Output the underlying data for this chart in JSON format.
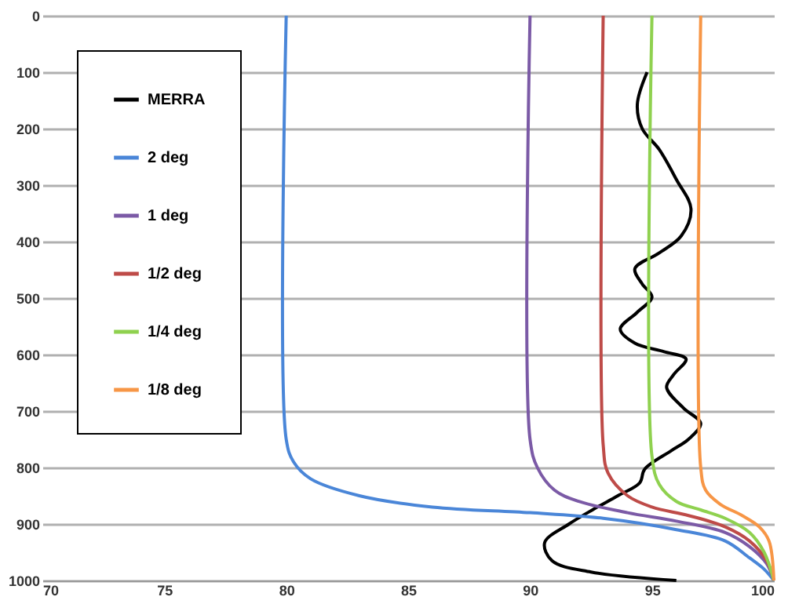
{
  "chart_data": {
    "type": "line",
    "xlim": [
      70,
      100
    ],
    "xticks": [
      70,
      75,
      80,
      85,
      90,
      95,
      100
    ],
    "ylim": [
      1000,
      0
    ],
    "yticks": [
      0,
      100,
      200,
      300,
      400,
      500,
      600,
      700,
      800,
      900,
      1000
    ],
    "grid": "y",
    "legend": "top left",
    "line_style": "solid",
    "marker": "none",
    "series": [
      {
        "name": "MERRA",
        "color": "#000000",
        "x": [
          94.8,
          94.4,
          94.6,
          95.3,
          96.0,
          96.6,
          96.2,
          95.3,
          94.3,
          94.6,
          95.0,
          94.4,
          93.7,
          94.3,
          95.5,
          96.4,
          95.9,
          95.6,
          96.3,
          97.0,
          96.5,
          95.8,
          94.7,
          94.5,
          93.6,
          92.6,
          91.6,
          90.6,
          90.9,
          92.5,
          96.0
        ],
        "values": [
          100,
          157,
          200,
          237,
          290,
          342,
          390,
          420,
          448,
          475,
          498,
          525,
          555,
          580,
          595,
          608,
          635,
          658,
          695,
          722,
          750,
          770,
          803,
          827,
          850,
          874,
          900,
          933,
          965,
          985,
          1000
        ]
      },
      {
        "name": "2 deg",
        "color": "#4a86d8",
        "x": [
          80,
          80,
          80.3,
          81,
          83,
          86,
          90,
          93,
          96,
          98,
          99,
          99.6,
          100
        ],
        "values": [
          0,
          750,
          790,
          820,
          850,
          870,
          880,
          890,
          910,
          930,
          960,
          980,
          1000
        ]
      },
      {
        "name": "1 deg",
        "color": "#7b5aa6",
        "x": [
          90,
          90,
          90.3,
          91,
          92,
          94,
          96,
          98,
          99,
          99.7,
          100
        ],
        "values": [
          0,
          750,
          800,
          840,
          860,
          880,
          895,
          915,
          940,
          970,
          1000
        ]
      },
      {
        "name": "1/2 deg",
        "color": "#be4b48",
        "x": [
          93,
          93,
          93.2,
          94,
          95,
          96.5,
          98,
          99,
          99.7,
          100
        ],
        "values": [
          0,
          760,
          810,
          850,
          870,
          885,
          905,
          930,
          965,
          1000
        ]
      },
      {
        "name": "1/4 deg",
        "color": "#8fd14f",
        "x": [
          95,
          95,
          95.3,
          96,
          97,
          98,
          99,
          99.6,
          100
        ],
        "values": [
          0,
          780,
          830,
          860,
          875,
          890,
          915,
          950,
          1000
        ]
      },
      {
        "name": "1/8 deg",
        "color": "#f79646",
        "x": [
          97,
          97,
          97.2,
          97.8,
          98.7,
          99.4,
          99.8,
          100
        ],
        "values": [
          0,
          800,
          840,
          865,
          885,
          905,
          930,
          1000
        ]
      }
    ]
  }
}
